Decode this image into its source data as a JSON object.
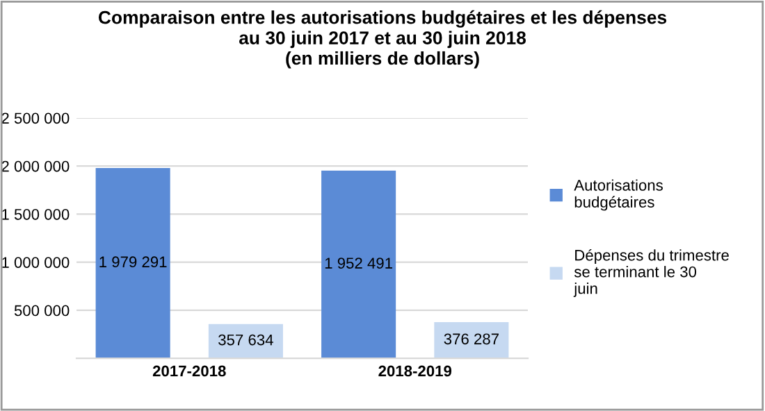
{
  "chart_data": {
    "type": "bar",
    "title": "Comparaison entre les autorisations budgétaires et les dépenses\nau 30 juin 2017 et au 30 juin 2018\n(en milliers de dollars)",
    "categories": [
      "2017-2018",
      "2018-2019"
    ],
    "series": [
      {
        "name": "Autorisations budgétaires",
        "color": "#5b8bd6",
        "values": [
          1979291,
          1952491
        ],
        "value_labels": [
          "1 979 291",
          "1 952 491"
        ]
      },
      {
        "name": "Dépenses du trimestre se terminant le 30 juin",
        "color": "#c6d9f1",
        "values": [
          357634,
          376287
        ],
        "value_labels": [
          "357 634",
          "376 287"
        ]
      }
    ],
    "ylim": [
      0,
      2500000
    ],
    "yticks": [
      {
        "value": 0,
        "label": null
      },
      {
        "value": 500000,
        "label": "500 000"
      },
      {
        "value": 1000000,
        "label": "1 000 000"
      },
      {
        "value": 1500000,
        "label": "1 500 000"
      },
      {
        "value": 2000000,
        "label": "2 000 000"
      },
      {
        "value": 2500000,
        "label": "2 500 000"
      }
    ],
    "grid": "y",
    "legend": "right"
  }
}
